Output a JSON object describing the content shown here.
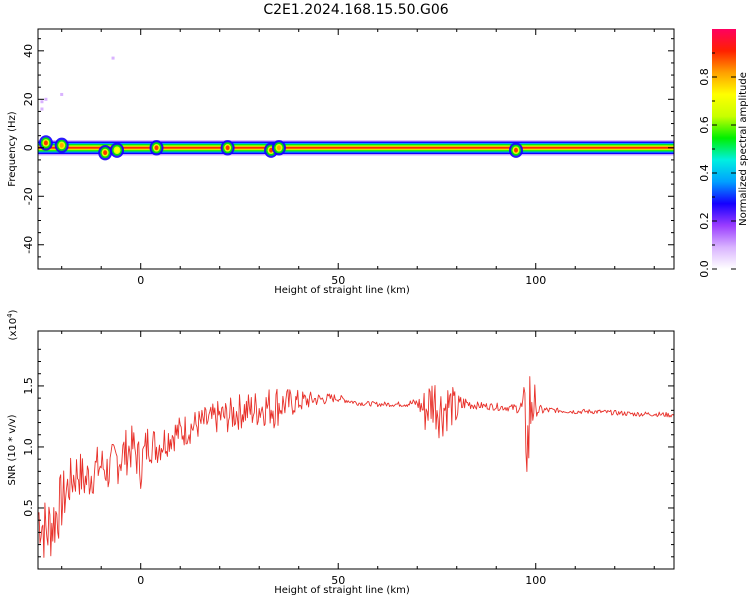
{
  "title": "C2E1.2024.168.15.50.G06",
  "chart_data": [
    {
      "type": "heatmap",
      "xlabel": "Height of straight line (km)",
      "ylabel": "Frequency (Hz)",
      "xlim": [
        -26,
        135
      ],
      "ylim": [
        -50,
        49
      ],
      "xticks": [
        0,
        50,
        100
      ],
      "yticks": [
        -40,
        -20,
        0,
        20,
        40
      ],
      "colorbar": {
        "label": "Normalized spectral amplitude",
        "range": [
          0.0,
          1.0
        ],
        "ticks": [
          "0.0",
          "0.2",
          "0.4",
          "0.6",
          "0.8"
        ],
        "colors": [
          "#ffffff",
          "#d9b3ff",
          "#9a3cff",
          "#1400ff",
          "#00a0ff",
          "#00f0e0",
          "#00f000",
          "#c8ff00",
          "#ffff00",
          "#ffa000",
          "#ff2000",
          "#ff0060"
        ]
      },
      "band": {
        "center_hz": 0,
        "half_width_hz": 3,
        "x_range": [
          -26,
          135
        ],
        "features": [
          {
            "x": -24,
            "y": 2,
            "amp": 0.9
          },
          {
            "x": -20,
            "y": 1,
            "amp": 0.8
          },
          {
            "x": -9,
            "y": -2,
            "amp": 0.95
          },
          {
            "x": -6,
            "y": -1,
            "amp": 0.7
          },
          {
            "x": 4,
            "y": 0,
            "amp": 0.9
          },
          {
            "x": 22,
            "y": 0,
            "amp": 0.95
          },
          {
            "x": 33,
            "y": -1,
            "amp": 0.9
          },
          {
            "x": 35,
            "y": 0,
            "amp": 0.85
          },
          {
            "x": 95,
            "y": -1,
            "amp": 0.9
          }
        ],
        "scatter": [
          {
            "x": -25,
            "y": 19
          },
          {
            "x": -24,
            "y": 20
          },
          {
            "x": -25,
            "y": 16
          },
          {
            "x": -20,
            "y": 22
          },
          {
            "x": -7,
            "y": 37
          }
        ]
      }
    },
    {
      "type": "line",
      "xlabel": "Height of straight line (km)",
      "ylabel": "SNR (10 * v/v)",
      "yscale_label": "(x10",
      "yscale_exp": "4",
      "yscale_close": ")",
      "xlim": [
        -26,
        135
      ],
      "ylim": [
        0.0,
        1.95
      ],
      "xticks": [
        0,
        50,
        100
      ],
      "yticks": [
        "0.5",
        "1.0",
        "1.5"
      ],
      "ytick_values": [
        0.5,
        1.0,
        1.5
      ],
      "color": "#e8312a",
      "series": [
        {
          "x": [
            -26,
            -24,
            -22,
            -20,
            -18,
            -16,
            -14,
            -12,
            -10,
            -8,
            -6,
            -4,
            -2,
            0,
            2,
            4,
            6,
            8,
            10,
            12,
            14,
            16,
            18,
            20,
            22,
            24,
            26,
            28,
            30,
            32,
            34,
            36,
            38,
            40,
            42,
            44,
            46,
            48,
            50,
            55,
            60,
            65,
            70,
            72,
            74,
            76,
            78,
            80,
            82,
            85,
            90,
            94,
            96,
            97,
            98,
            99,
            100,
            105,
            110,
            115,
            120,
            125,
            130,
            135
          ],
          "y": [
            0.45,
            0.3,
            0.4,
            0.55,
            0.7,
            0.8,
            0.72,
            0.8,
            0.85,
            0.8,
            0.9,
            0.95,
            1.0,
            0.85,
            1.05,
            1.0,
            1.05,
            1.1,
            1.12,
            1.15,
            1.18,
            1.2,
            1.22,
            1.25,
            1.25,
            1.28,
            1.3,
            1.3,
            1.32,
            1.33,
            1.34,
            1.35,
            1.36,
            1.37,
            1.38,
            1.39,
            1.39,
            1.4,
            1.4,
            1.36,
            1.35,
            1.35,
            1.36,
            1.3,
            1.4,
            1.3,
            1.35,
            1.3,
            1.36,
            1.34,
            1.33,
            1.32,
            1.32,
            1.3,
            1.0,
            1.5,
            1.3,
            1.3,
            1.29,
            1.29,
            1.28,
            1.27,
            1.27,
            1.26
          ],
          "amp": [
            0.25,
            0.3,
            0.3,
            0.25,
            0.2,
            0.2,
            0.2,
            0.2,
            0.18,
            0.18,
            0.22,
            0.2,
            0.18,
            0.2,
            0.18,
            0.15,
            0.15,
            0.14,
            0.14,
            0.14,
            0.13,
            0.13,
            0.13,
            0.14,
            0.14,
            0.15,
            0.15,
            0.16,
            0.16,
            0.16,
            0.2,
            0.14,
            0.12,
            0.1,
            0.08,
            0.06,
            0.05,
            0.04,
            0.03,
            0.02,
            0.02,
            0.02,
            0.04,
            0.2,
            0.25,
            0.25,
            0.2,
            0.15,
            0.06,
            0.03,
            0.03,
            0.03,
            0.05,
            0.2,
            0.5,
            0.6,
            0.05,
            0.02,
            0.02,
            0.02,
            0.02,
            0.02,
            0.02,
            0.02
          ]
        }
      ]
    }
  ]
}
